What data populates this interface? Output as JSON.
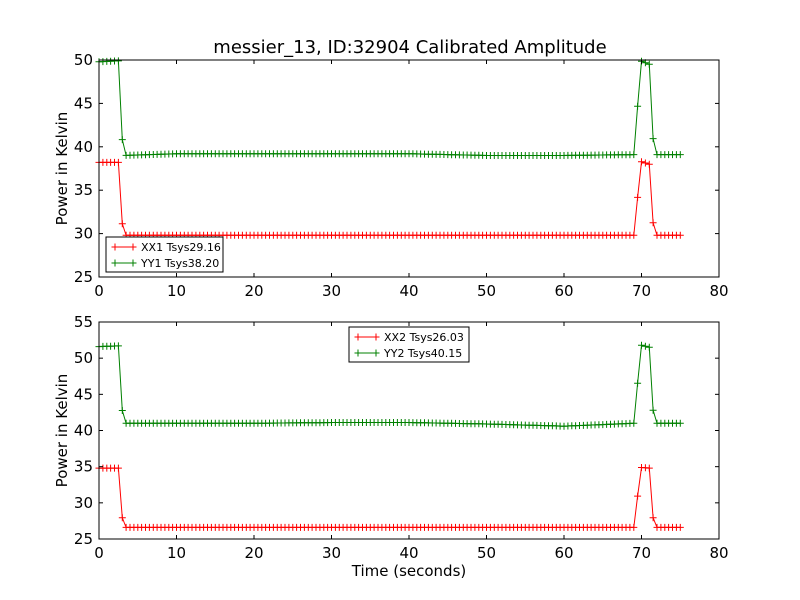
{
  "figure_title": "messier_13, ID:32904 Calibrated Amplitude",
  "chart_data": [
    {
      "type": "line",
      "title": "messier_13, ID:32904 Calibrated Amplitude",
      "xlabel": "",
      "ylabel": "Power in Kelvin",
      "xlim": [
        0,
        80
      ],
      "ylim": [
        25,
        50
      ],
      "xticks": [
        0,
        10,
        20,
        30,
        40,
        50,
        60,
        70,
        80
      ],
      "yticks": [
        25,
        30,
        35,
        40,
        45,
        50
      ],
      "grid": false,
      "legend_position": "lower-left",
      "markers": "plus",
      "series": [
        {
          "name": "XX1 Tsys29.16",
          "color": "#ff0000",
          "points": [
            [
              0,
              38.2
            ],
            [
              2.5,
              38.2
            ],
            [
              2.8,
              33.8
            ],
            [
              3.1,
              29.8
            ],
            [
              69,
              29.8
            ],
            [
              69.3,
              30.5
            ],
            [
              69.6,
              36.0
            ],
            [
              69.9,
              38.3
            ],
            [
              71,
              38.0
            ],
            [
              71.3,
              32.7
            ],
            [
              71.7,
              29.8
            ],
            [
              75,
              29.8
            ]
          ]
        },
        {
          "name": "YY1 Tsys38.20",
          "color": "#008000",
          "points": [
            [
              0,
              49.8
            ],
            [
              2.5,
              49.9
            ],
            [
              2.8,
              44.5
            ],
            [
              3.1,
              39.0
            ],
            [
              10,
              39.2
            ],
            [
              20,
              39.2
            ],
            [
              30,
              39.2
            ],
            [
              40,
              39.2
            ],
            [
              50,
              39.0
            ],
            [
              60,
              39.0
            ],
            [
              69,
              39.1
            ],
            [
              69.3,
              40.0
            ],
            [
              69.6,
              47.0
            ],
            [
              69.9,
              49.9
            ],
            [
              71,
              49.5
            ],
            [
              71.3,
              42.8
            ],
            [
              71.7,
              39.1
            ],
            [
              75,
              39.1
            ]
          ]
        }
      ]
    },
    {
      "type": "line",
      "title": "",
      "xlabel": "Time (seconds)",
      "ylabel": "Power in Kelvin",
      "xlim": [
        0,
        80
      ],
      "ylim": [
        25,
        55
      ],
      "xticks": [
        0,
        10,
        20,
        30,
        40,
        50,
        60,
        70,
        80
      ],
      "yticks": [
        25,
        30,
        35,
        40,
        45,
        50,
        55
      ],
      "grid": false,
      "legend_position": "top-center",
      "markers": "plus",
      "series": [
        {
          "name": "XX2 Tsys26.03",
          "color": "#ff0000",
          "points": [
            [
              0,
              34.8
            ],
            [
              2.5,
              34.8
            ],
            [
              2.8,
              30.6
            ],
            [
              3.1,
              26.6
            ],
            [
              69,
              26.6
            ],
            [
              69.3,
              27.2
            ],
            [
              69.6,
              32.8
            ],
            [
              69.9,
              34.9
            ],
            [
              71,
              34.8
            ],
            [
              71.3,
              29.3
            ],
            [
              71.7,
              26.6
            ],
            [
              75,
              26.6
            ]
          ]
        },
        {
          "name": "YY2 Tsys40.15",
          "color": "#008000",
          "points": [
            [
              0,
              51.6
            ],
            [
              2.5,
              51.7
            ],
            [
              2.8,
              46.3
            ],
            [
              3.1,
              41.0
            ],
            [
              10,
              41.0
            ],
            [
              20,
              41.0
            ],
            [
              30,
              41.1
            ],
            [
              40,
              41.1
            ],
            [
              50,
              40.9
            ],
            [
              60,
              40.6
            ],
            [
              69,
              41.0
            ],
            [
              69.3,
              42.0
            ],
            [
              69.6,
              48.8
            ],
            [
              69.9,
              51.8
            ],
            [
              71,
              51.5
            ],
            [
              71.3,
              44.6
            ],
            [
              71.7,
              41.0
            ],
            [
              75,
              41.0
            ]
          ]
        }
      ]
    }
  ]
}
